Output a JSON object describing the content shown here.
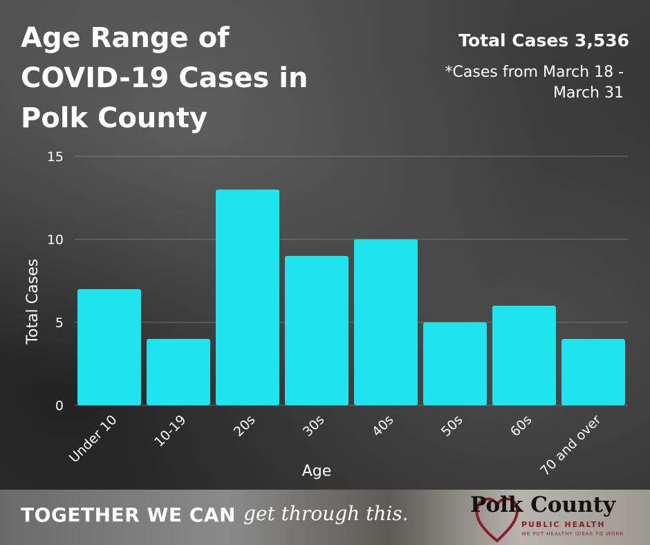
{
  "header": {
    "title": "Age Range of COVID-19 Cases in Polk County",
    "total_cases": "Total Cases 3,536",
    "date_note": "*Cases from March 18 - March 31"
  },
  "colors": {
    "bar": "#1fe3ef",
    "axis_text": "#ffffff",
    "grid": "#8a8a8a",
    "brand_accent": "#8b1c2b"
  },
  "chart_data": {
    "type": "bar",
    "categories": [
      "Under 10",
      "10-19",
      "20s",
      "30s",
      "40s",
      "50s",
      "60s",
      "70 and over"
    ],
    "values": [
      7,
      4,
      13,
      9,
      10,
      5,
      6,
      4
    ],
    "xlabel": "Age",
    "ylabel": "Total Cases",
    "ylim": [
      0,
      15
    ],
    "yticks": [
      0,
      5,
      10,
      15
    ],
    "grid": true,
    "legend": "none"
  },
  "footer": {
    "slogan_bold": "TOGETHER WE CAN",
    "slogan_script": "get through this.",
    "logo_name": "Polk County",
    "logo_sub": "PUBLIC HEALTH",
    "logo_tagline": "WE PUT HEALTHY IDEAS TO WORK",
    "logo_icon": "heart-icon"
  }
}
